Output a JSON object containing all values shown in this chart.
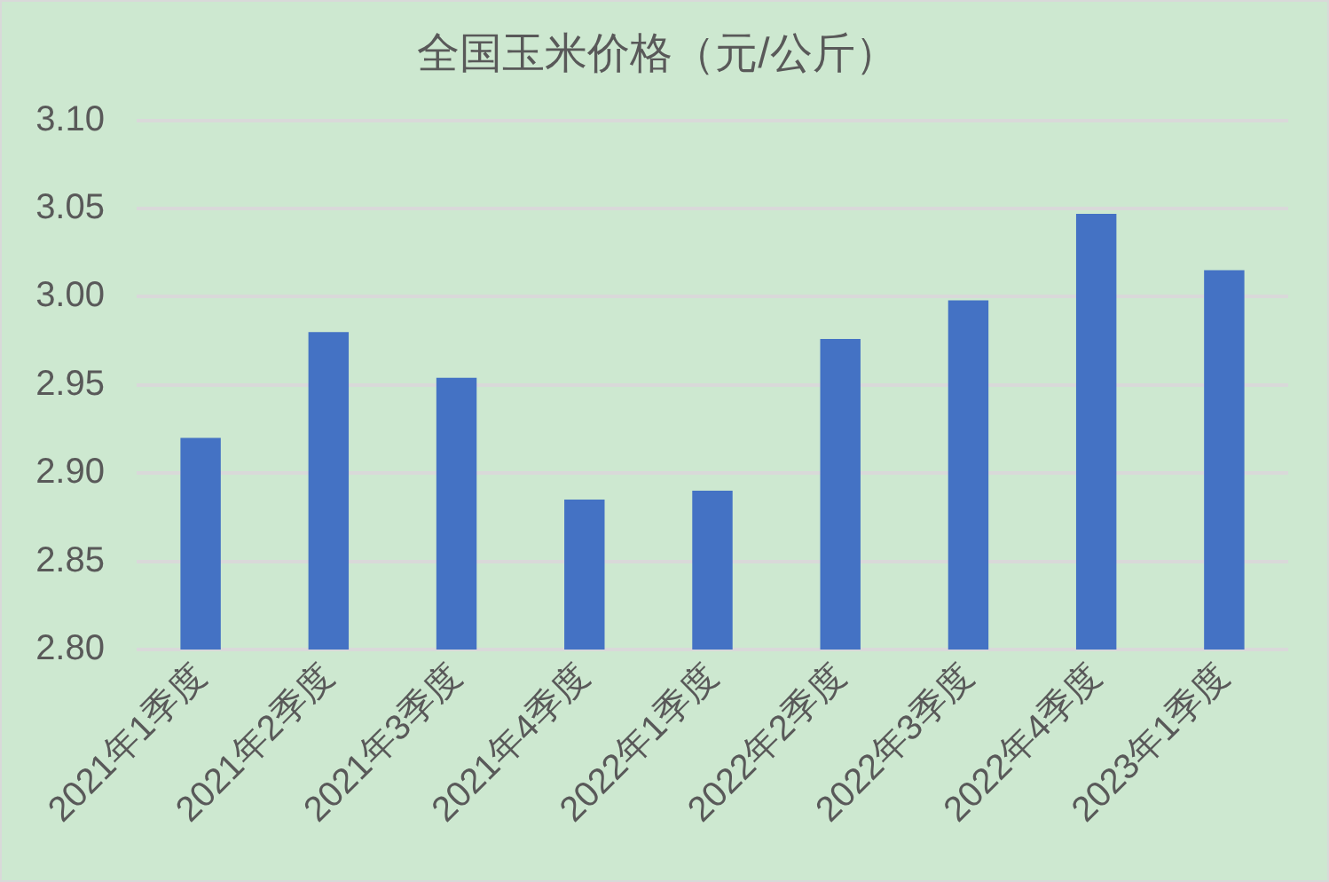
{
  "chart_data": {
    "type": "bar",
    "title": "全国玉米价格（元/公斤）",
    "categories": [
      "2021年1季度",
      "2021年2季度",
      "2021年3季度",
      "2021年4季度",
      "2022年1季度",
      "2022年2季度",
      "2022年3季度",
      "2022年4季度",
      "2023年1季度"
    ],
    "values": [
      2.92,
      2.98,
      2.954,
      2.885,
      2.89,
      2.976,
      2.998,
      3.047,
      3.015
    ],
    "color": "#4472c4",
    "ylim": [
      2.8,
      3.1
    ],
    "yticks": [
      {
        "value": 2.8,
        "label": "2.80"
      },
      {
        "value": 2.85,
        "label": "2.85"
      },
      {
        "value": 2.9,
        "label": "2.90"
      },
      {
        "value": 2.95,
        "label": "2.95"
      },
      {
        "value": 3.0,
        "label": "3.00"
      },
      {
        "value": 3.05,
        "label": "3.05"
      },
      {
        "value": 3.1,
        "label": "3.10"
      }
    ],
    "grid": "y",
    "legend": false
  }
}
